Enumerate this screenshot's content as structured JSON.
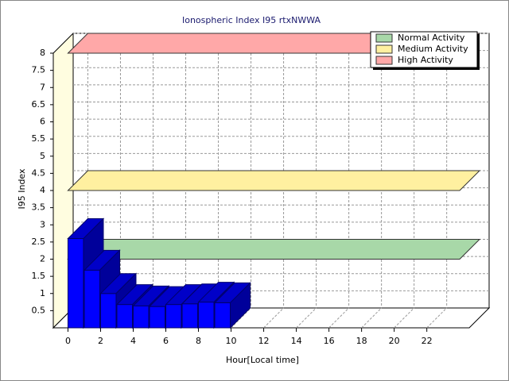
{
  "chart_data": {
    "type": "bar3d",
    "title": "Ionospheric Index I95 rtxNWWA",
    "x_label": "Hour[Local time]",
    "y_label": "I95 Index",
    "x": [
      0,
      1,
      2,
      3,
      4,
      5,
      6,
      7,
      8,
      9
    ],
    "values": [
      2.6,
      1.68,
      1.0,
      0.68,
      0.64,
      0.62,
      0.68,
      0.7,
      0.75,
      0.73
    ],
    "color": "#0000ff",
    "bands": [
      {
        "name": "Normal Activity",
        "value": 2,
        "color": "#a8d8a8"
      },
      {
        "name": "Medium Activity",
        "value": 4,
        "color": "#fff0a0"
      },
      {
        "name": "High Activity",
        "value": 8,
        "color": "#ffa8a8"
      }
    ],
    "xlim": [
      -0.9,
      24.6
    ],
    "xticks": [
      0,
      2,
      4,
      6,
      8,
      10,
      12,
      14,
      16,
      18,
      20,
      22
    ],
    "ylim": [
      0,
      8
    ],
    "yticks": [
      0.5,
      1,
      1.5,
      2,
      2.5,
      3,
      3.5,
      4,
      4.5,
      5,
      5.5,
      6,
      6.5,
      7,
      7.5,
      8
    ],
    "grid": true,
    "legend": "upper right"
  }
}
